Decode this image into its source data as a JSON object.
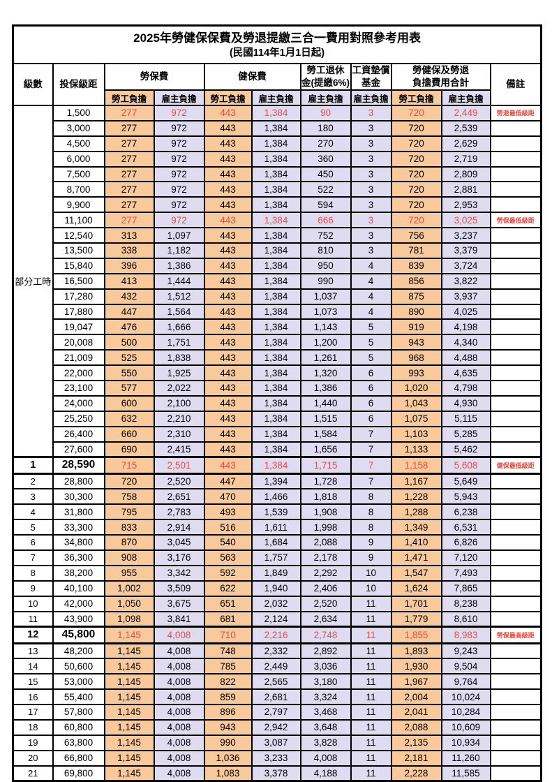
{
  "title": "2025年勞健保保費及勞退提繳三合一費用對照參考用表",
  "subtitle": "(民國114年1月1日起)",
  "columns": {
    "level": "級數",
    "bracket": "投保級距",
    "labor": "勞保費",
    "health": "健保費",
    "pension": [
      "勞工退休",
      "金(提繳6%)"
    ],
    "wage_fund": [
      "工資墊償",
      "基金"
    ],
    "total": [
      "勞健保及勞退",
      "負擔費用合計"
    ],
    "remark": "備註",
    "employee": "勞工負擔",
    "employer": "雇主負擔"
  },
  "part_time_label": "部分工時",
  "colors": {
    "employee_bg": "#f8c99b",
    "employer_bg": "#dfdcf2",
    "highlight_text": "#ef4b43",
    "border": "#000000"
  },
  "rows": [
    {
      "level": "",
      "bracket": "1,500",
      "values": [
        "277",
        "972",
        "443",
        "1,384",
        "90",
        "3",
        "720",
        "2,449"
      ],
      "remark": "勞退最低級距",
      "highlight": true,
      "emphasis": false
    },
    {
      "level": "",
      "bracket": "3,000",
      "values": [
        "277",
        "972",
        "443",
        "1,384",
        "180",
        "3",
        "720",
        "2,539"
      ],
      "remark": "",
      "highlight": false,
      "emphasis": false
    },
    {
      "level": "",
      "bracket": "4,500",
      "values": [
        "277",
        "972",
        "443",
        "1,384",
        "270",
        "3",
        "720",
        "2,629"
      ],
      "remark": "",
      "highlight": false,
      "emphasis": false
    },
    {
      "level": "",
      "bracket": "6,000",
      "values": [
        "277",
        "972",
        "443",
        "1,384",
        "360",
        "3",
        "720",
        "2,719"
      ],
      "remark": "",
      "highlight": false,
      "emphasis": false
    },
    {
      "level": "",
      "bracket": "7,500",
      "values": [
        "277",
        "972",
        "443",
        "1,384",
        "450",
        "3",
        "720",
        "2,809"
      ],
      "remark": "",
      "highlight": false,
      "emphasis": false
    },
    {
      "level": "",
      "bracket": "8,700",
      "values": [
        "277",
        "972",
        "443",
        "1,384",
        "522",
        "3",
        "720",
        "2,881"
      ],
      "remark": "",
      "highlight": false,
      "emphasis": false
    },
    {
      "level": "",
      "bracket": "9,900",
      "values": [
        "277",
        "972",
        "443",
        "1,384",
        "594",
        "3",
        "720",
        "2,953"
      ],
      "remark": "",
      "highlight": false,
      "emphasis": false
    },
    {
      "level": "",
      "bracket": "11,100",
      "values": [
        "277",
        "972",
        "443",
        "1,384",
        "666",
        "3",
        "720",
        "3,025"
      ],
      "remark": "勞保最低級距",
      "highlight": true,
      "emphasis": false
    },
    {
      "level": "",
      "bracket": "12,540",
      "values": [
        "313",
        "1,097",
        "443",
        "1,384",
        "752",
        "3",
        "756",
        "3,237"
      ],
      "remark": "",
      "highlight": false,
      "emphasis": false
    },
    {
      "level": "",
      "bracket": "13,500",
      "values": [
        "338",
        "1,182",
        "443",
        "1,384",
        "810",
        "3",
        "781",
        "3,379"
      ],
      "remark": "",
      "highlight": false,
      "emphasis": false
    },
    {
      "level": "",
      "bracket": "15,840",
      "values": [
        "396",
        "1,386",
        "443",
        "1,384",
        "950",
        "4",
        "839",
        "3,724"
      ],
      "remark": "",
      "highlight": false,
      "emphasis": false
    },
    {
      "level": "",
      "bracket": "16,500",
      "values": [
        "413",
        "1,444",
        "443",
        "1,384",
        "990",
        "4",
        "856",
        "3,822"
      ],
      "remark": "",
      "highlight": false,
      "emphasis": false
    },
    {
      "level": "",
      "bracket": "17,280",
      "values": [
        "432",
        "1,512",
        "443",
        "1,384",
        "1,037",
        "4",
        "875",
        "3,937"
      ],
      "remark": "",
      "highlight": false,
      "emphasis": false
    },
    {
      "level": "",
      "bracket": "17,880",
      "values": [
        "447",
        "1,564",
        "443",
        "1,384",
        "1,073",
        "4",
        "890",
        "4,025"
      ],
      "remark": "",
      "highlight": false,
      "emphasis": false
    },
    {
      "level": "",
      "bracket": "19,047",
      "values": [
        "476",
        "1,666",
        "443",
        "1,384",
        "1,143",
        "5",
        "919",
        "4,198"
      ],
      "remark": "",
      "highlight": false,
      "emphasis": false
    },
    {
      "level": "",
      "bracket": "20,008",
      "values": [
        "500",
        "1,751",
        "443",
        "1,384",
        "1,200",
        "5",
        "943",
        "4,340"
      ],
      "remark": "",
      "highlight": false,
      "emphasis": false
    },
    {
      "level": "",
      "bracket": "21,009",
      "values": [
        "525",
        "1,838",
        "443",
        "1,384",
        "1,261",
        "5",
        "968",
        "4,488"
      ],
      "remark": "",
      "highlight": false,
      "emphasis": false
    },
    {
      "level": "",
      "bracket": "22,000",
      "values": [
        "550",
        "1,925",
        "443",
        "1,384",
        "1,320",
        "6",
        "993",
        "4,635"
      ],
      "remark": "",
      "highlight": false,
      "emphasis": false
    },
    {
      "level": "",
      "bracket": "23,100",
      "values": [
        "577",
        "2,022",
        "443",
        "1,384",
        "1,386",
        "6",
        "1,020",
        "4,798"
      ],
      "remark": "",
      "highlight": false,
      "emphasis": false
    },
    {
      "level": "",
      "bracket": "24,000",
      "values": [
        "600",
        "2,100",
        "443",
        "1,384",
        "1,440",
        "6",
        "1,043",
        "4,930"
      ],
      "remark": "",
      "highlight": false,
      "emphasis": false
    },
    {
      "level": "",
      "bracket": "25,250",
      "values": [
        "632",
        "2,210",
        "443",
        "1,384",
        "1,515",
        "6",
        "1,075",
        "5,115"
      ],
      "remark": "",
      "highlight": false,
      "emphasis": false
    },
    {
      "level": "",
      "bracket": "26,400",
      "values": [
        "660",
        "2,310",
        "443",
        "1,384",
        "1,584",
        "7",
        "1,103",
        "5,285"
      ],
      "remark": "",
      "highlight": false,
      "emphasis": false
    },
    {
      "level": "",
      "bracket": "27,600",
      "values": [
        "690",
        "2,415",
        "443",
        "1,384",
        "1,656",
        "7",
        "1,133",
        "5,462"
      ],
      "remark": "",
      "highlight": false,
      "emphasis": false
    },
    {
      "level": "1",
      "bracket": "28,590",
      "values": [
        "715",
        "2,501",
        "443",
        "1,384",
        "1,715",
        "7",
        "1,158",
        "5,608"
      ],
      "remark": "健保最低級距",
      "highlight": true,
      "emphasis": true
    },
    {
      "level": "2",
      "bracket": "28,800",
      "values": [
        "720",
        "2,520",
        "447",
        "1,394",
        "1,728",
        "7",
        "1,167",
        "5,649"
      ],
      "remark": "",
      "highlight": false,
      "emphasis": false
    },
    {
      "level": "3",
      "bracket": "30,300",
      "values": [
        "758",
        "2,651",
        "470",
        "1,466",
        "1,818",
        "8",
        "1,228",
        "5,943"
      ],
      "remark": "",
      "highlight": false,
      "emphasis": false
    },
    {
      "level": "4",
      "bracket": "31,800",
      "values": [
        "795",
        "2,783",
        "493",
        "1,539",
        "1,908",
        "8",
        "1,288",
        "6,238"
      ],
      "remark": "",
      "highlight": false,
      "emphasis": false
    },
    {
      "level": "5",
      "bracket": "33,300",
      "values": [
        "833",
        "2,914",
        "516",
        "1,611",
        "1,998",
        "8",
        "1,349",
        "6,531"
      ],
      "remark": "",
      "highlight": false,
      "emphasis": false
    },
    {
      "level": "6",
      "bracket": "34,800",
      "values": [
        "870",
        "3,045",
        "540",
        "1,684",
        "2,088",
        "9",
        "1,410",
        "6,826"
      ],
      "remark": "",
      "highlight": false,
      "emphasis": false
    },
    {
      "level": "7",
      "bracket": "36,300",
      "values": [
        "908",
        "3,176",
        "563",
        "1,757",
        "2,178",
        "9",
        "1,471",
        "7,120"
      ],
      "remark": "",
      "highlight": false,
      "emphasis": false
    },
    {
      "level": "8",
      "bracket": "38,200",
      "values": [
        "955",
        "3,342",
        "592",
        "1,849",
        "2,292",
        "10",
        "1,547",
        "7,493"
      ],
      "remark": "",
      "highlight": false,
      "emphasis": false
    },
    {
      "level": "9",
      "bracket": "40,100",
      "values": [
        "1,002",
        "3,509",
        "622",
        "1,940",
        "2,406",
        "10",
        "1,624",
        "7,865"
      ],
      "remark": "",
      "highlight": false,
      "emphasis": false
    },
    {
      "level": "10",
      "bracket": "42,000",
      "values": [
        "1,050",
        "3,675",
        "651",
        "2,032",
        "2,520",
        "11",
        "1,701",
        "8,238"
      ],
      "remark": "",
      "highlight": false,
      "emphasis": false
    },
    {
      "level": "11",
      "bracket": "43,900",
      "values": [
        "1,098",
        "3,841",
        "681",
        "2,124",
        "2,634",
        "11",
        "1,779",
        "8,610"
      ],
      "remark": "",
      "highlight": false,
      "emphasis": false
    },
    {
      "level": "12",
      "bracket": "45,800",
      "values": [
        "1,145",
        "4,008",
        "710",
        "2,216",
        "2,748",
        "11",
        "1,855",
        "8,983"
      ],
      "remark": "勞保最高級距",
      "highlight": true,
      "emphasis": true
    },
    {
      "level": "13",
      "bracket": "48,200",
      "values": [
        "1,145",
        "4,008",
        "748",
        "2,332",
        "2,892",
        "11",
        "1,893",
        "9,243"
      ],
      "remark": "",
      "highlight": false,
      "emphasis": false
    },
    {
      "level": "14",
      "bracket": "50,600",
      "values": [
        "1,145",
        "4,008",
        "785",
        "2,449",
        "3,036",
        "11",
        "1,930",
        "9,504"
      ],
      "remark": "",
      "highlight": false,
      "emphasis": false
    },
    {
      "level": "15",
      "bracket": "53,000",
      "values": [
        "1,145",
        "4,008",
        "822",
        "2,565",
        "3,180",
        "11",
        "1,967",
        "9,764"
      ],
      "remark": "",
      "highlight": false,
      "emphasis": false
    },
    {
      "level": "16",
      "bracket": "55,400",
      "values": [
        "1,145",
        "4,008",
        "859",
        "2,681",
        "3,324",
        "11",
        "2,004",
        "10,024"
      ],
      "remark": "",
      "highlight": false,
      "emphasis": false
    },
    {
      "level": "17",
      "bracket": "57,800",
      "values": [
        "1,145",
        "4,008",
        "896",
        "2,797",
        "3,468",
        "11",
        "2,041",
        "10,284"
      ],
      "remark": "",
      "highlight": false,
      "emphasis": false
    },
    {
      "level": "18",
      "bracket": "60,800",
      "values": [
        "1,145",
        "4,008",
        "943",
        "2,942",
        "3,648",
        "11",
        "2,088",
        "10,609"
      ],
      "remark": "",
      "highlight": false,
      "emphasis": false
    },
    {
      "level": "19",
      "bracket": "63,800",
      "values": [
        "1,145",
        "4,008",
        "990",
        "3,087",
        "3,828",
        "11",
        "2,135",
        "10,934"
      ],
      "remark": "",
      "highlight": false,
      "emphasis": false
    },
    {
      "level": "20",
      "bracket": "66,800",
      "values": [
        "1,145",
        "4,008",
        "1,036",
        "3,233",
        "4,008",
        "11",
        "2,181",
        "11,260"
      ],
      "remark": "",
      "highlight": false,
      "emphasis": false
    },
    {
      "level": "21",
      "bracket": "69,800",
      "values": [
        "1,145",
        "4,008",
        "1,083",
        "3,378",
        "4,188",
        "11",
        "2,228",
        "11,585"
      ],
      "remark": "",
      "highlight": false,
      "emphasis": false
    }
  ]
}
